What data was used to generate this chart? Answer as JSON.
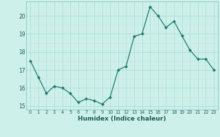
{
  "x": [
    0,
    1,
    2,
    3,
    4,
    5,
    6,
    7,
    8,
    9,
    10,
    11,
    12,
    13,
    14,
    15,
    16,
    17,
    18,
    19,
    20,
    21,
    22,
    23
  ],
  "y": [
    17.5,
    16.6,
    15.7,
    16.1,
    16.0,
    15.7,
    15.2,
    15.4,
    15.3,
    15.1,
    15.5,
    17.0,
    17.2,
    18.85,
    19.0,
    20.5,
    20.0,
    19.35,
    19.7,
    18.9,
    18.1,
    17.6,
    17.6,
    17.0
  ],
  "line_color": "#1a7a6e",
  "marker": "D",
  "marker_size": 2.0,
  "bg_color": "#cef0ea",
  "grid_major_color": "#aaddd6",
  "grid_minor_color": "#bde8e2",
  "xlabel": "Humidex (Indice chaleur)",
  "ylim": [
    14.8,
    20.8
  ],
  "xlim": [
    -0.5,
    23.5
  ],
  "yticks": [
    15,
    16,
    17,
    18,
    19,
    20
  ],
  "xticks": [
    0,
    1,
    2,
    3,
    4,
    5,
    6,
    7,
    8,
    9,
    10,
    11,
    12,
    13,
    14,
    15,
    16,
    17,
    18,
    19,
    20,
    21,
    22,
    23
  ],
  "xtick_labels": [
    "0",
    "1",
    "2",
    "3",
    "4",
    "5",
    "6",
    "7",
    "8",
    "9",
    "10",
    "11",
    "12",
    "13",
    "14",
    "15",
    "16",
    "17",
    "18",
    "19",
    "20",
    "21",
    "22",
    "23"
  ]
}
